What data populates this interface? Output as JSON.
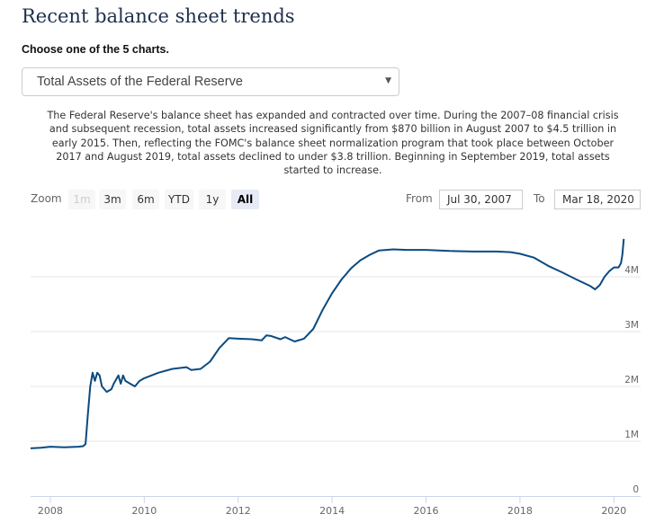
{
  "header": {
    "title": "Recent balance sheet trends",
    "choose_label": "Choose one of the 5 charts."
  },
  "chart_select": {
    "selected": "Total Assets of the Federal Reserve",
    "arrow_icon": "caret-down-icon"
  },
  "description": "The Federal Reserve's balance sheet has expanded and contracted over time. During the 2007–08 financial crisis and subsequent recession, total assets increased significantly from $870 billion in August 2007 to $4.5 trillion in early 2015. Then, reflecting the FOMC's balance sheet normalization program that took place between October 2017 and August 2019, total assets declined to under $3.8 trillion. Beginning in September 2019, total assets started to increase.",
  "range_selector": {
    "zoom_label": "Zoom",
    "buttons": [
      {
        "label": "1m",
        "state": "disabled"
      },
      {
        "label": "3m",
        "state": "normal"
      },
      {
        "label": "6m",
        "state": "normal"
      },
      {
        "label": "YTD",
        "state": "normal"
      },
      {
        "label": "1y",
        "state": "normal"
      },
      {
        "label": "All",
        "state": "active"
      }
    ],
    "from_label": "From",
    "from_value": "Jul 30, 2007",
    "to_label": "To",
    "to_value": "Mar 18, 2020"
  },
  "colors": {
    "line": "#0b4a80",
    "grid": "#e6e6e6",
    "axis": "#ccd6eb"
  },
  "chart_data": {
    "type": "line",
    "title": "Total Assets of the Federal Reserve",
    "xlabel": "",
    "ylabel": "",
    "xlim": [
      2007.58,
      2020.21
    ],
    "ylim": [
      0,
      4.7
    ],
    "grid": true,
    "x_ticks": [
      {
        "value": 2008,
        "label": "2008"
      },
      {
        "value": 2010,
        "label": "2010"
      },
      {
        "value": 2012,
        "label": "2012"
      },
      {
        "value": 2014,
        "label": "2014"
      },
      {
        "value": 2016,
        "label": "2016"
      },
      {
        "value": 2018,
        "label": "2018"
      },
      {
        "value": 2020,
        "label": "2020"
      }
    ],
    "y_ticks": [
      {
        "value": 0,
        "label": "0"
      },
      {
        "value": 1,
        "label": "1M"
      },
      {
        "value": 2,
        "label": "2M"
      },
      {
        "value": 3,
        "label": "3M"
      },
      {
        "value": 4,
        "label": "4M"
      }
    ],
    "series": [
      {
        "name": "Total Assets",
        "x": [
          2007.58,
          2007.8,
          2008.0,
          2008.3,
          2008.6,
          2008.7,
          2008.75,
          2008.8,
          2008.85,
          2008.9,
          2008.95,
          2009.0,
          2009.05,
          2009.1,
          2009.2,
          2009.3,
          2009.35,
          2009.45,
          2009.5,
          2009.55,
          2009.6,
          2009.7,
          2009.8,
          2009.9,
          2010.0,
          2010.3,
          2010.6,
          2010.9,
          2011.0,
          2011.2,
          2011.4,
          2011.6,
          2011.8,
          2012.0,
          2012.3,
          2012.5,
          2012.6,
          2012.7,
          2012.9,
          2013.0,
          2013.2,
          2013.4,
          2013.6,
          2013.8,
          2014.0,
          2014.2,
          2014.4,
          2014.6,
          2014.8,
          2015.0,
          2015.3,
          2015.6,
          2016.0,
          2016.5,
          2017.0,
          2017.5,
          2017.8,
          2018.0,
          2018.3,
          2018.6,
          2018.9,
          2019.2,
          2019.5,
          2019.6,
          2019.7,
          2019.8,
          2019.9,
          2020.0,
          2020.1,
          2020.15,
          2020.18,
          2020.21
        ],
        "values": [
          0.87,
          0.88,
          0.9,
          0.89,
          0.9,
          0.91,
          0.95,
          1.5,
          2.0,
          2.25,
          2.1,
          2.25,
          2.2,
          2.0,
          1.9,
          1.95,
          2.05,
          2.2,
          2.05,
          2.2,
          2.1,
          2.05,
          2.0,
          2.1,
          2.15,
          2.25,
          2.32,
          2.35,
          2.3,
          2.32,
          2.45,
          2.7,
          2.88,
          2.87,
          2.86,
          2.84,
          2.93,
          2.92,
          2.86,
          2.9,
          2.82,
          2.87,
          3.05,
          3.4,
          3.7,
          3.95,
          4.15,
          4.3,
          4.4,
          4.48,
          4.5,
          4.49,
          4.49,
          4.47,
          4.46,
          4.46,
          4.45,
          4.42,
          4.35,
          4.2,
          4.08,
          3.95,
          3.83,
          3.77,
          3.85,
          4.0,
          4.1,
          4.17,
          4.17,
          4.25,
          4.4,
          4.69
        ]
      }
    ]
  }
}
